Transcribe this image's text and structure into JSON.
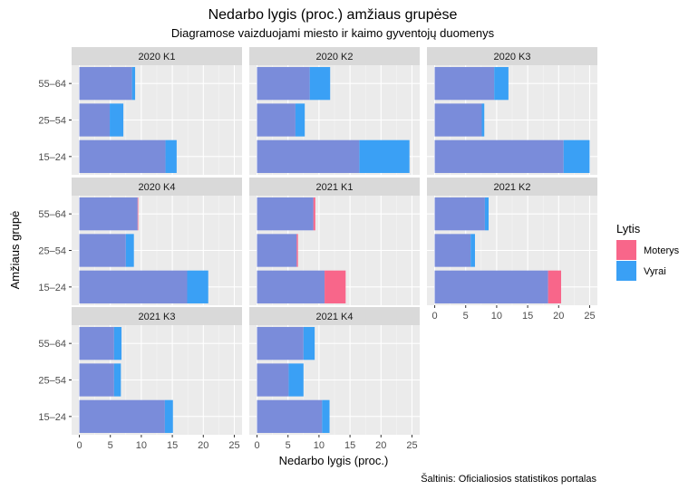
{
  "chart_data": {
    "type": "bar",
    "orientation": "horizontal",
    "title": "Nedarbo lygis (proc.) amžiaus grupėse",
    "subtitle": "Diagramose vaizduojami miesto ir kaimo gyventojų duomenys",
    "xlabel": "Nedarbo lygis (proc.)",
    "ylabel": "Amžiaus grupė",
    "caption": "Šaltinis: Oficialiosios statistikos portalas",
    "xlim": [
      0,
      25
    ],
    "x_ticks": [
      "0",
      "5",
      "10",
      "15",
      "20",
      "25"
    ],
    "categories": [
      "15–24",
      "25–54",
      "55–64"
    ],
    "legend": {
      "title": "Lytis",
      "position": "right",
      "entries": [
        {
          "name": "Moterys",
          "color": "#F8668A"
        },
        {
          "name": "Vyrai",
          "color": "#3AA0F5"
        }
      ]
    },
    "overlap_color": "#7A8CDA",
    "grid": true,
    "panels": [
      {
        "label": "2020 K1",
        "series": [
          {
            "name": "Moterys",
            "values": [
              13.9,
              4.9,
              8.5
            ]
          },
          {
            "name": "Vyrai",
            "values": [
              15.7,
              7.1,
              9.0
            ]
          }
        ]
      },
      {
        "label": "2020 K2",
        "series": [
          {
            "name": "Moterys",
            "values": [
              16.5,
              6.2,
              8.5
            ]
          },
          {
            "name": "Vyrai",
            "values": [
              24.6,
              7.7,
              11.8
            ]
          }
        ]
      },
      {
        "label": "2020 K3",
        "series": [
          {
            "name": "Moterys",
            "values": [
              20.8,
              7.6,
              9.6
            ]
          },
          {
            "name": "Vyrai",
            "values": [
              25.0,
              8.0,
              11.9
            ]
          }
        ]
      },
      {
        "label": "2020 K4",
        "series": [
          {
            "name": "Moterys",
            "values": [
              17.4,
              7.5,
              9.5
            ]
          },
          {
            "name": "Vyrai",
            "values": [
              20.8,
              8.8,
              9.4
            ]
          }
        ]
      },
      {
        "label": "2021 K1",
        "series": [
          {
            "name": "Moterys",
            "values": [
              14.3,
              6.6,
              9.4
            ]
          },
          {
            "name": "Vyrai",
            "values": [
              10.9,
              6.4,
              9.1
            ]
          }
        ]
      },
      {
        "label": "2021 K2",
        "series": [
          {
            "name": "Moterys",
            "values": [
              20.4,
              5.8,
              8.1
            ]
          },
          {
            "name": "Vyrai",
            "values": [
              18.3,
              6.5,
              8.7
            ]
          }
        ]
      },
      {
        "label": "2021 K3",
        "series": [
          {
            "name": "Moterys",
            "values": [
              13.8,
              5.6,
              5.6
            ]
          },
          {
            "name": "Vyrai",
            "values": [
              15.1,
              6.7,
              6.8
            ]
          }
        ]
      },
      {
        "label": "2021 K4",
        "series": [
          {
            "name": "Moterys",
            "values": [
              10.5,
              5.1,
              7.5
            ]
          },
          {
            "name": "Vyrai",
            "values": [
              11.7,
              7.5,
              9.3
            ]
          }
        ]
      }
    ]
  }
}
